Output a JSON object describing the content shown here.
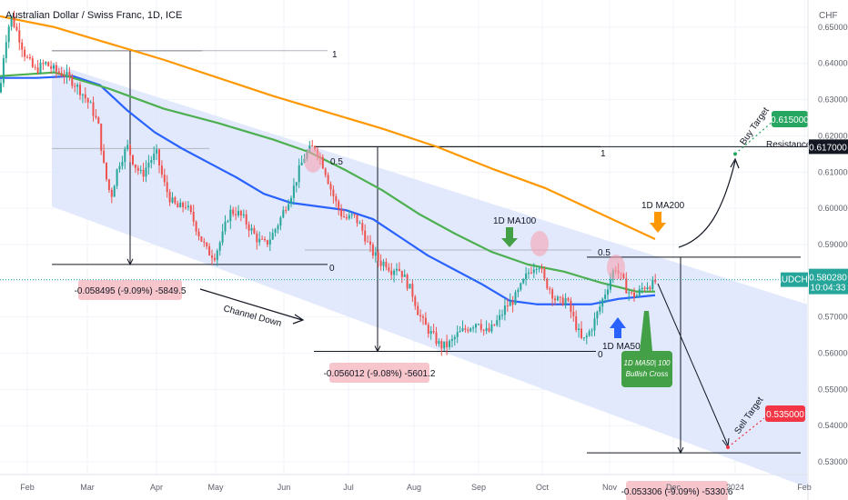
{
  "header": {
    "title": "Australian Dollar / Swiss Franc, 1D, ICE",
    "currency": "CHF"
  },
  "chart_data": {
    "type": "candlestick",
    "title": "Australian Dollar / Swiss Franc, 1D, ICE",
    "y_unit": "CHF",
    "ylim": [
      0.5265,
      0.6575
    ],
    "y_ticks": [
      "0.650000",
      "0.640000",
      "0.630000",
      "0.620000",
      "0.610000",
      "0.600000",
      "0.590000",
      "0.580000",
      "0.570000",
      "0.560000",
      "0.550000",
      "0.540000",
      "0.530000"
    ],
    "x_ticks": [
      "Feb",
      "Mar",
      "Apr",
      "May",
      "Jun",
      "Jul",
      "Aug",
      "Sep",
      "Oct",
      "Nov",
      "Dec",
      "2024",
      "Feb"
    ],
    "price_path": [
      [
        0,
        0.632
      ],
      [
        5,
        0.645
      ],
      [
        12,
        0.653
      ],
      [
        20,
        0.648
      ],
      [
        28,
        0.642
      ],
      [
        38,
        0.638
      ],
      [
        50,
        0.64
      ],
      [
        60,
        0.638
      ],
      [
        70,
        0.637
      ],
      [
        80,
        0.635
      ],
      [
        90,
        0.632
      ],
      [
        100,
        0.628
      ],
      [
        108,
        0.623
      ],
      [
        115,
        0.61
      ],
      [
        122,
        0.603
      ],
      [
        130,
        0.612
      ],
      [
        140,
        0.617
      ],
      [
        148,
        0.612
      ],
      [
        156,
        0.609
      ],
      [
        164,
        0.613
      ],
      [
        172,
        0.615
      ],
      [
        180,
        0.607
      ],
      [
        188,
        0.602
      ],
      [
        196,
        0.6
      ],
      [
        204,
        0.601
      ],
      [
        212,
        0.597
      ],
      [
        220,
        0.592
      ],
      [
        228,
        0.588
      ],
      [
        236,
        0.587
      ],
      [
        244,
        0.592
      ],
      [
        252,
        0.599
      ],
      [
        260,
        0.599
      ],
      [
        268,
        0.597
      ],
      [
        276,
        0.594
      ],
      [
        284,
        0.591
      ],
      [
        292,
        0.59
      ],
      [
        300,
        0.593
      ],
      [
        308,
        0.597
      ],
      [
        316,
        0.602
      ],
      [
        322,
        0.605
      ],
      [
        328,
        0.61
      ],
      [
        334,
        0.614
      ],
      [
        340,
        0.616
      ],
      [
        346,
        0.617
      ],
      [
        352,
        0.614
      ],
      [
        358,
        0.61
      ],
      [
        364,
        0.605
      ],
      [
        370,
        0.601
      ],
      [
        376,
        0.598
      ],
      [
        382,
        0.597
      ],
      [
        388,
        0.598
      ],
      [
        394,
        0.596
      ],
      [
        400,
        0.593
      ],
      [
        406,
        0.589
      ],
      [
        412,
        0.587
      ],
      [
        418,
        0.585
      ],
      [
        424,
        0.585
      ],
      [
        430,
        0.583
      ],
      [
        436,
        0.584
      ],
      [
        442,
        0.582
      ],
      [
        448,
        0.579
      ],
      [
        454,
        0.576
      ],
      [
        460,
        0.571
      ],
      [
        466,
        0.568
      ],
      [
        472,
        0.566
      ],
      [
        478,
        0.564
      ],
      [
        484,
        0.562
      ],
      [
        490,
        0.562
      ],
      [
        496,
        0.563
      ],
      [
        502,
        0.565
      ],
      [
        508,
        0.566
      ],
      [
        514,
        0.567
      ],
      [
        520,
        0.568
      ],
      [
        526,
        0.569
      ],
      [
        532,
        0.566
      ],
      [
        538,
        0.566
      ],
      [
        544,
        0.568
      ],
      [
        550,
        0.57
      ],
      [
        556,
        0.573
      ],
      [
        562,
        0.574
      ],
      [
        568,
        0.576
      ],
      [
        574,
        0.579
      ],
      [
        580,
        0.582
      ],
      [
        586,
        0.584
      ],
      [
        592,
        0.585
      ],
      [
        598,
        0.58
      ],
      [
        604,
        0.578
      ],
      [
        610,
        0.575
      ],
      [
        616,
        0.574
      ],
      [
        622,
        0.575
      ],
      [
        628,
        0.571
      ],
      [
        634,
        0.567
      ],
      [
        640,
        0.563
      ],
      [
        646,
        0.565
      ],
      [
        652,
        0.568
      ],
      [
        658,
        0.572
      ],
      [
        664,
        0.576
      ],
      [
        670,
        0.58
      ],
      [
        676,
        0.584
      ],
      [
        682,
        0.581
      ],
      [
        688,
        0.578
      ],
      [
        694,
        0.576
      ],
      [
        700,
        0.576
      ],
      [
        706,
        0.578
      ],
      [
        712,
        0.579
      ],
      [
        718,
        0.579
      ],
      [
        722,
        0.5803
      ]
    ],
    "last_price": "0.580280",
    "last_label": "AUDCHF",
    "countdown": "10:04:33",
    "series": [
      {
        "name": "1D MA50",
        "color": "#2962ff",
        "points": [
          [
            0,
            0.636
          ],
          [
            40,
            0.636
          ],
          [
            80,
            0.6365
          ],
          [
            110,
            0.634
          ],
          [
            140,
            0.627
          ],
          [
            170,
            0.621
          ],
          [
            200,
            0.6165
          ],
          [
            230,
            0.6125
          ],
          [
            260,
            0.6085
          ],
          [
            290,
            0.604
          ],
          [
            320,
            0.6015
          ],
          [
            350,
            0.6005
          ],
          [
            380,
            0.5995
          ],
          [
            410,
            0.597
          ],
          [
            440,
            0.592
          ],
          [
            470,
            0.587
          ],
          [
            500,
            0.583
          ],
          [
            530,
            0.579
          ],
          [
            560,
            0.5745
          ],
          [
            590,
            0.5735
          ],
          [
            620,
            0.5735
          ],
          [
            650,
            0.5735
          ],
          [
            680,
            0.575
          ],
          [
            720,
            0.576
          ]
        ]
      },
      {
        "name": "1D MA100",
        "color": "#4caf50",
        "points": [
          [
            0,
            0.6365
          ],
          [
            60,
            0.6375
          ],
          [
            120,
            0.633
          ],
          [
            180,
            0.6275
          ],
          [
            240,
            0.6235
          ],
          [
            300,
            0.619
          ],
          [
            340,
            0.6155
          ],
          [
            380,
            0.6105
          ],
          [
            420,
            0.605
          ],
          [
            460,
            0.5985
          ],
          [
            500,
            0.593
          ],
          [
            540,
            0.588
          ],
          [
            580,
            0.5845
          ],
          [
            620,
            0.5825
          ],
          [
            660,
            0.5795
          ],
          [
            700,
            0.577
          ],
          [
            720,
            0.577
          ]
        ]
      },
      {
        "name": "1D MA200",
        "color": "#ff9800",
        "points": [
          [
            0,
            0.653
          ],
          [
            60,
            0.65
          ],
          [
            120,
            0.6455
          ],
          [
            180,
            0.641
          ],
          [
            240,
            0.636
          ],
          [
            300,
            0.631
          ],
          [
            360,
            0.6265
          ],
          [
            420,
            0.622
          ],
          [
            480,
            0.617
          ],
          [
            540,
            0.611
          ],
          [
            600,
            0.6055
          ],
          [
            660,
            0.5985
          ],
          [
            720,
            0.5915
          ]
        ]
      }
    ],
    "channel": {
      "upper": [
        [
          57,
          0.64
        ],
        [
          887,
          0.5735
        ]
      ],
      "lower": [
        [
          57,
          0.6005
        ],
        [
          887,
          0.523
        ]
      ]
    },
    "annotations": {
      "measure_1": "-0.058495 (-9.09%) -5849.5",
      "measure_2": "-0.056012 (-9.08%) -5601.2",
      "measure_3": "-0.053306 (-9.09%) -5330.6",
      "channel": "Channel Down",
      "ma100": "1D MA100",
      "ma200": "1D MA200",
      "ma50": "1D MA50",
      "bullish_cross": "1D MA50| 100 Bullish Cross",
      "buy_target": "Buy Target",
      "sell_target": "Sell Target",
      "resistance": "Resistance 1",
      "fib_1a": "1",
      "fib_1b": "1",
      "fib_05a": "0.5",
      "fib_05b": "0.5",
      "fib_0a": "0",
      "fib_0b": "0"
    },
    "price_labels": {
      "buy_target": {
        "value": "0.615000",
        "color": "#26a660"
      },
      "resistance": {
        "value": "0.617000",
        "color": "#131722"
      },
      "sell_target": {
        "value": "0.535000",
        "color": "#f23645"
      }
    }
  }
}
